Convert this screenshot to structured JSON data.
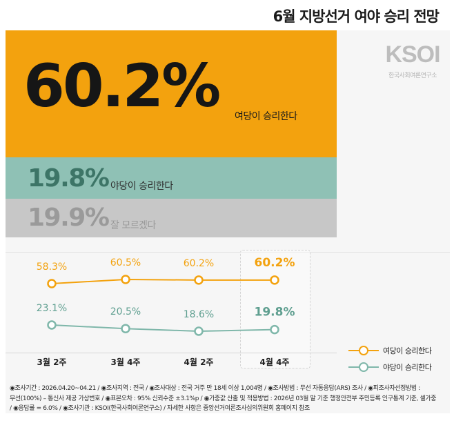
{
  "title": "6월 지방선거 여야 승리 전망",
  "logo": {
    "mark": "KSOI",
    "sub": "한국사회여론연구소"
  },
  "headline": {
    "ruling": {
      "value": "60.2%",
      "label": "여당이 승리한다"
    },
    "opposition": {
      "value": "19.8%",
      "label": "야당이 승리한다"
    },
    "unsure": {
      "value": "19.9%",
      "label": "잘 모르겠다"
    }
  },
  "colors": {
    "ruling": "#f3a20e",
    "opposition": "#8fc1b5",
    "opposition_line": "#7fb7aa",
    "unsure": "#c7c7c7",
    "unsure_text": "#9a9a9a",
    "opp_text": "#3d7567"
  },
  "chart_data": {
    "type": "line",
    "categories": [
      "3월 2주",
      "3월 4주",
      "4월 2주",
      "4월 4주"
    ],
    "series": [
      {
        "name": "여당이 승리한다",
        "values": [
          58.3,
          60.5,
          60.2,
          60.2
        ],
        "labels": [
          "58.3%",
          "60.5%",
          "60.2%",
          "60.2%"
        ]
      },
      {
        "name": "야당이 승리한다",
        "values": [
          23.1,
          20.5,
          18.6,
          19.8
        ],
        "labels": [
          "23.1%",
          "20.5%",
          "18.6%",
          "19.8%"
        ]
      }
    ],
    "highlight_category": "4월 4주",
    "legend_position": "bottom-right",
    "grid": false
  },
  "footer": {
    "lines": [
      "◉조사기간 : 2026.04.20~04.21 / ◉조사지역 : 전국 / ◉조사대상 : 전국 거주 만 18세 이상 1,004명 / ◉조사방법 : 무선 자동응답(ARS) 조사 / ◉피조사자선정방법 :",
      "무선(100%) – 통신사 제공 가상번호 / ◉표본오차 : 95% 신뢰수준 ±3.1%p / ◉가중값 산출 및 적용방법 : 2026년 03월 말 기준 행정안전부 주민등록 인구통계 기준, 셀가중",
      "/ ◉응답률 = 6.0% / ◉조사기관 : KSOI(한국사회여론연구소) / 자세한 사항은 중앙선거여론조사심의위원회 홈페이지 참조"
    ]
  }
}
